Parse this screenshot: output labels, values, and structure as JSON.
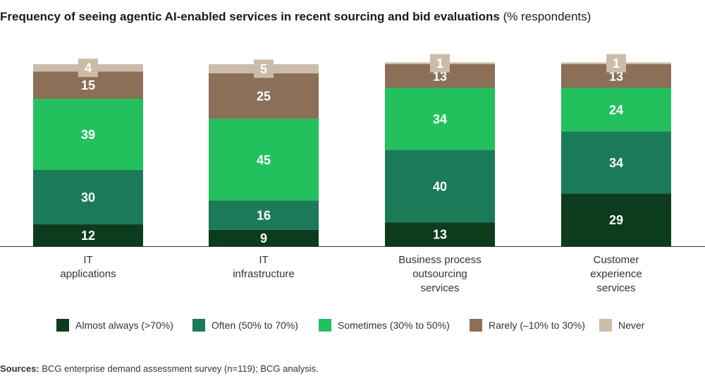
{
  "title": {
    "main": "Frequency of seeing agentic AI-enabled services in recent sourcing and bid evaluations",
    "unit": "(% respondents)"
  },
  "chart_data": {
    "type": "bar",
    "stacked": true,
    "categories": [
      [
        "IT",
        "applications"
      ],
      [
        "IT",
        "infrastructure"
      ],
      [
        "Business process",
        "outsourcing",
        "services"
      ],
      [
        "Customer",
        "experience",
        "services"
      ]
    ],
    "series": [
      {
        "name": "Almost always (>70%)",
        "color": "#0d3b1e",
        "values": [
          12,
          9,
          13,
          29
        ]
      },
      {
        "name": "Often (50% to 70%)",
        "color": "#1b7a57",
        "values": [
          30,
          16,
          40,
          34
        ]
      },
      {
        "name": "Sometimes (30% to 50%)",
        "color": "#22c15e",
        "values": [
          39,
          45,
          34,
          24
        ]
      },
      {
        "name": "Rarely (–10% to 30%)",
        "color": "#8b6f58",
        "values": [
          15,
          25,
          13,
          13
        ]
      },
      {
        "name": "Never",
        "color": "#cbbca9",
        "values": [
          4,
          5,
          1,
          1
        ]
      }
    ],
    "ylim": [
      0,
      100
    ],
    "grid": false,
    "legend": "bottom"
  },
  "source": {
    "label": "Sources:",
    "text": "BCG enterprise demand assessment survey (n=119); BCG analysis."
  }
}
